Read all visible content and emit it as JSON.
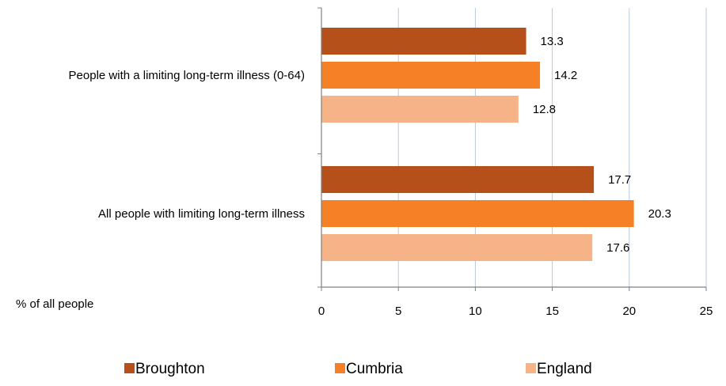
{
  "chart_data": {
    "type": "bar",
    "orientation": "horizontal",
    "categories": [
      "People with a limiting long-term illness (0-64)",
      "All people with limiting long-term illness"
    ],
    "series": [
      {
        "name": "Broughton",
        "color": "#b5501a",
        "values": [
          13.3,
          17.7
        ]
      },
      {
        "name": "Cumbria",
        "color": "#f58025",
        "values": [
          14.2,
          20.3
        ]
      },
      {
        "name": "England",
        "color": "#f7b388",
        "values": [
          12.8,
          17.6
        ]
      }
    ],
    "xlabel": "% of all people",
    "xlim": [
      0,
      25
    ],
    "xticks": [
      "0",
      "5",
      "10",
      "15",
      "20",
      "25"
    ],
    "data_labels": [
      [
        "13.3",
        "17.7"
      ],
      [
        "14.2",
        "20.3"
      ],
      [
        "12.8",
        "17.6"
      ]
    ],
    "grid": "vertical",
    "grid_color": "#b7c9de",
    "axis_color": "#808080",
    "legend_position": "bottom"
  }
}
